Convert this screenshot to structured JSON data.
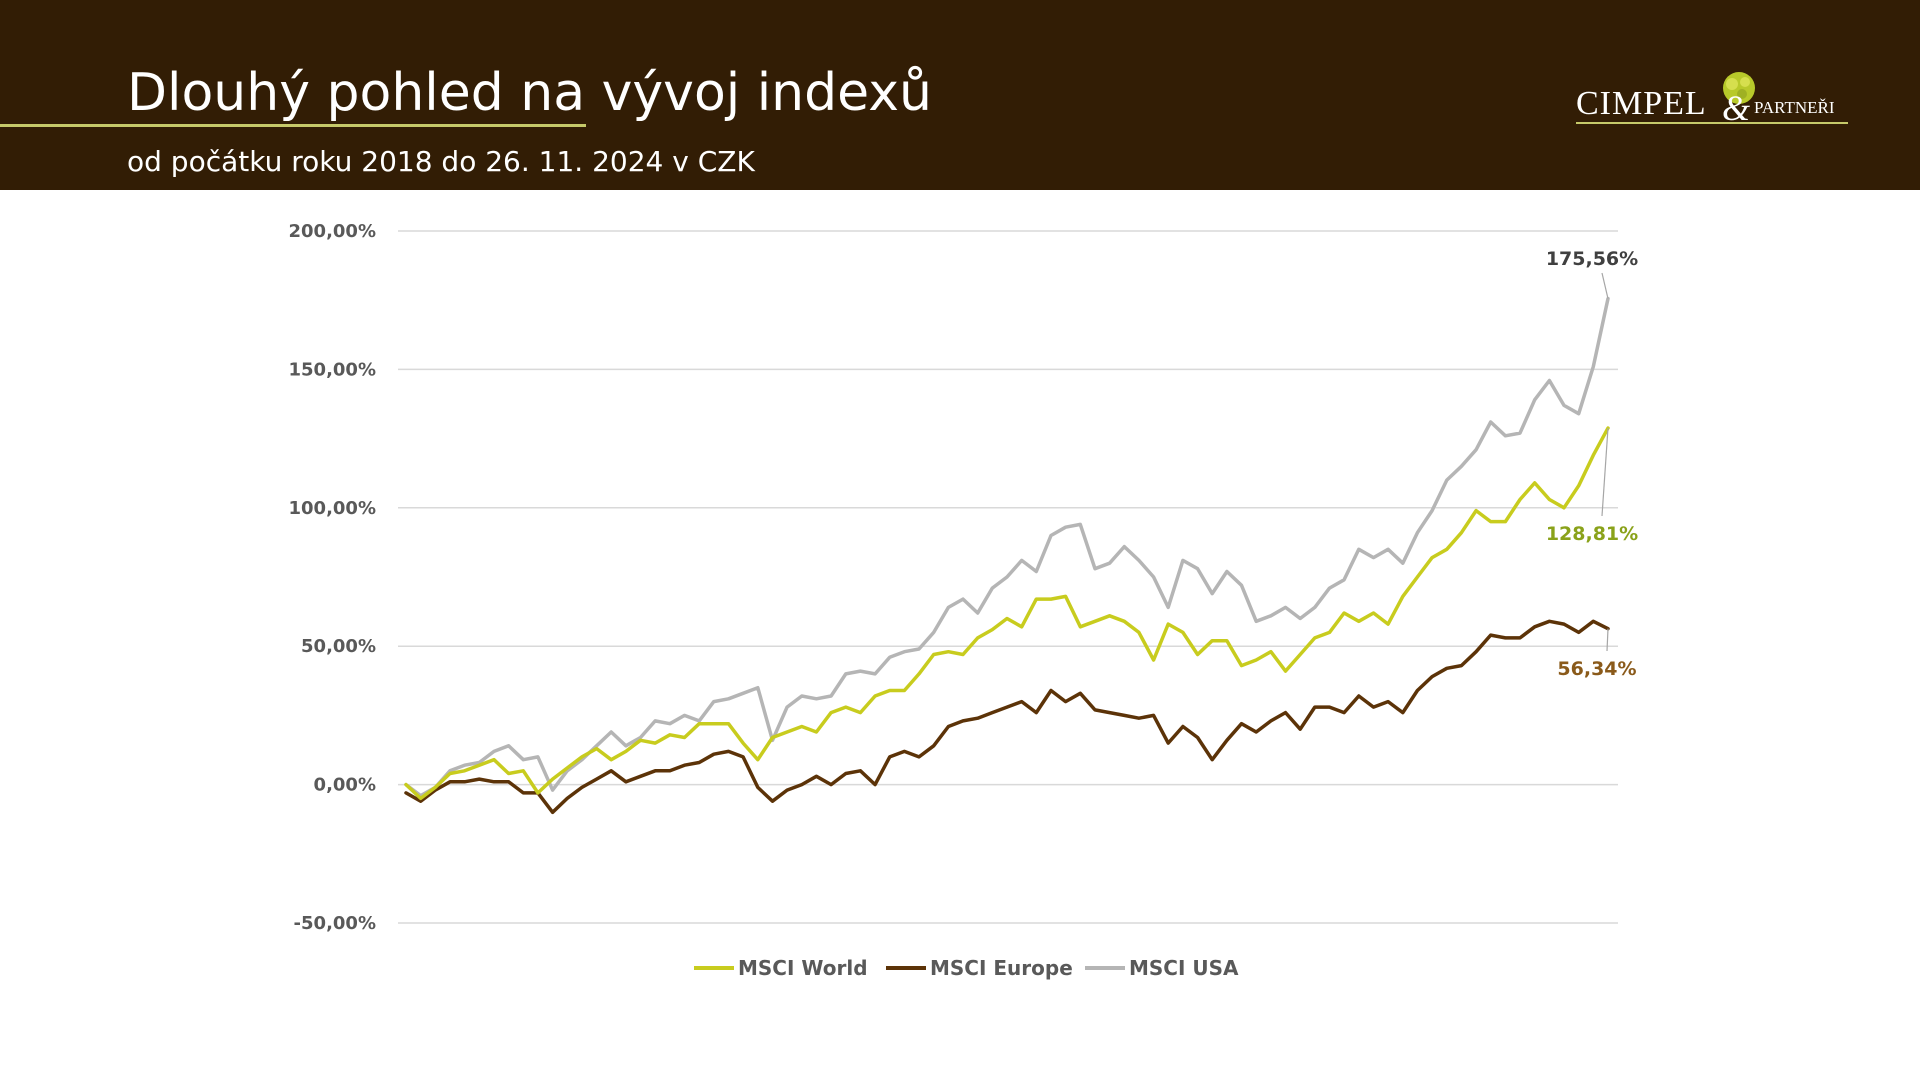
{
  "header": {
    "title": "Dlouhý pohled na vývoj indexů",
    "subtitle": "od počátku roku 2018 do 26. 11. 2024 v CZK",
    "logo": {
      "name_main": "CIMPEL",
      "name_amp": "&",
      "name_partners": "PARTNEŘI"
    }
  },
  "colors": {
    "header_bg": "#321d05",
    "accent_rule": "#c6c96a",
    "world": "#c8cc1e",
    "europe": "#5c3308",
    "usa": "#b5b5b5",
    "grid": "#d9d9d9",
    "axis_text": "#595959"
  },
  "chart_data": {
    "type": "line",
    "title": "",
    "xlabel": "",
    "ylabel": "",
    "ylim": [
      -50,
      200
    ],
    "y_ticks": [
      200,
      150,
      100,
      50,
      0,
      -50
    ],
    "y_tick_labels": [
      "200,00%",
      "150,00%",
      "100,00%",
      "50,00%",
      "0,00%",
      "-50,00%"
    ],
    "grid": true,
    "legend_position": "bottom",
    "x_range": [
      "2018-01",
      "2024-11"
    ],
    "x": [
      "2018-01",
      "2018-02",
      "2018-03",
      "2018-04",
      "2018-05",
      "2018-06",
      "2018-07",
      "2018-08",
      "2018-09",
      "2018-10",
      "2018-11",
      "2018-12",
      "2019-01",
      "2019-02",
      "2019-03",
      "2019-04",
      "2019-05",
      "2019-06",
      "2019-07",
      "2019-08",
      "2019-09",
      "2019-10",
      "2019-11",
      "2019-12",
      "2020-01",
      "2020-02",
      "2020-03",
      "2020-04",
      "2020-05",
      "2020-06",
      "2020-07",
      "2020-08",
      "2020-09",
      "2020-10",
      "2020-11",
      "2020-12",
      "2021-01",
      "2021-02",
      "2021-03",
      "2021-04",
      "2021-05",
      "2021-06",
      "2021-07",
      "2021-08",
      "2021-09",
      "2021-10",
      "2021-11",
      "2021-12",
      "2022-01",
      "2022-02",
      "2022-03",
      "2022-04",
      "2022-05",
      "2022-06",
      "2022-07",
      "2022-08",
      "2022-09",
      "2022-10",
      "2022-11",
      "2022-12",
      "2023-01",
      "2023-02",
      "2023-03",
      "2023-04",
      "2023-05",
      "2023-06",
      "2023-07",
      "2023-08",
      "2023-09",
      "2023-10",
      "2023-11",
      "2023-12",
      "2024-01",
      "2024-02",
      "2024-03",
      "2024-04",
      "2024-05",
      "2024-06",
      "2024-07",
      "2024-08",
      "2024-09",
      "2024-10",
      "2024-11"
    ],
    "series": [
      {
        "name": "MSCI World",
        "color": "#c8cc1e",
        "values": [
          0,
          -5,
          -1,
          4,
          5,
          7,
          9,
          4,
          5,
          -3,
          2,
          6,
          10,
          13,
          9,
          12,
          16,
          15,
          18,
          17,
          22,
          22,
          22,
          15,
          9,
          17,
          19,
          21,
          19,
          26,
          28,
          26,
          32,
          34,
          34,
          40,
          47,
          48,
          47,
          53,
          56,
          60,
          57,
          67,
          67,
          68,
          57,
          59,
          61,
          59,
          55,
          45,
          58,
          55,
          47,
          52,
          52,
          43,
          45,
          48,
          41,
          47,
          53,
          55,
          62,
          59,
          62,
          58,
          68,
          75,
          82,
          85,
          91,
          99,
          95,
          95,
          103,
          109,
          103,
          100,
          108,
          119,
          128.81
        ]
      },
      {
        "name": "MSCI Europe",
        "color": "#5c3308",
        "values": [
          -3,
          -6,
          -2,
          1,
          1,
          2,
          1,
          1,
          -3,
          -3,
          -10,
          -5,
          -1,
          2,
          5,
          1,
          3,
          5,
          5,
          7,
          8,
          11,
          12,
          10,
          -1,
          -6,
          -2,
          0,
          3,
          0,
          4,
          5,
          0,
          10,
          12,
          10,
          14,
          21,
          23,
          24,
          26,
          28,
          30,
          26,
          34,
          30,
          33,
          27,
          26,
          25,
          24,
          25,
          15,
          21,
          17,
          9,
          16,
          22,
          19,
          23,
          26,
          20,
          28,
          28,
          26,
          32,
          28,
          30,
          26,
          34,
          39,
          42,
          43,
          48,
          54,
          53,
          53,
          57,
          59,
          58,
          55,
          59,
          56.34
        ]
      },
      {
        "name": "MSCI USA",
        "color": "#b5b5b5",
        "values": [
          0,
          -4,
          -1,
          5,
          7,
          8,
          12,
          14,
          9,
          10,
          -2,
          5,
          9,
          14,
          19,
          14,
          17,
          23,
          22,
          25,
          23,
          30,
          31,
          33,
          35,
          16,
          28,
          32,
          31,
          32,
          40,
          41,
          40,
          46,
          48,
          49,
          55,
          64,
          67,
          62,
          71,
          75,
          81,
          77,
          90,
          93,
          94,
          78,
          80,
          86,
          81,
          75,
          64,
          81,
          78,
          69,
          77,
          72,
          59,
          61,
          64,
          60,
          64,
          71,
          74,
          85,
          82,
          85,
          80,
          91,
          99,
          110,
          115,
          121,
          131,
          126,
          127,
          139,
          146,
          137,
          134,
          151,
          175.56
        ]
      }
    ],
    "end_labels": [
      {
        "series": "MSCI USA",
        "text": "175,56%"
      },
      {
        "series": "MSCI World",
        "text": "128,81%"
      },
      {
        "series": "MSCI Europe",
        "text": "56,34%"
      }
    ],
    "legend": [
      "MSCI World",
      "MSCI Europe",
      "MSCI USA"
    ]
  }
}
